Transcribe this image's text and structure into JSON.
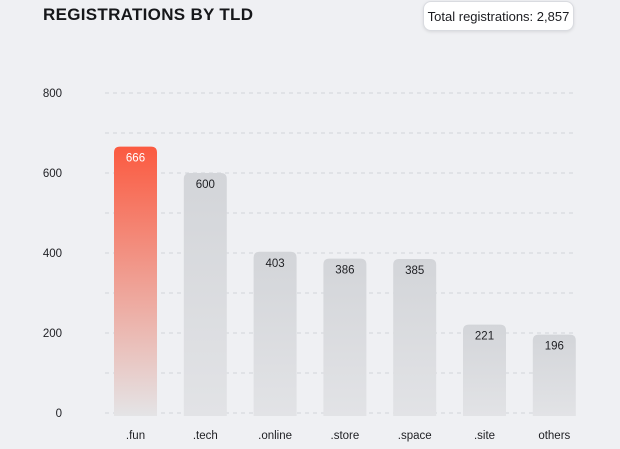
{
  "header": {
    "title": "REGISTRATIONS BY TLD",
    "total_label": "Total registrations: 2,857"
  },
  "colors": {
    "background": "#eff0f3",
    "bar": "#d4d6da",
    "highlight_top": "#fb5a40",
    "highlight_bottom": "#e4e4e6",
    "grid": "#d2d4d9"
  },
  "chart_data": {
    "type": "bar",
    "title": "REGISTRATIONS BY TLD",
    "categories": [
      ".fun",
      ".tech",
      ".online",
      ".store",
      ".space",
      ".site",
      "others"
    ],
    "values": [
      666,
      600,
      403,
      386,
      385,
      221,
      196
    ],
    "highlight_index": 0,
    "ylim": [
      0,
      800
    ],
    "yticks": [
      0,
      200,
      400,
      600,
      800
    ],
    "grid": true,
    "data_labels": true,
    "xlabel": "",
    "ylabel": ""
  }
}
